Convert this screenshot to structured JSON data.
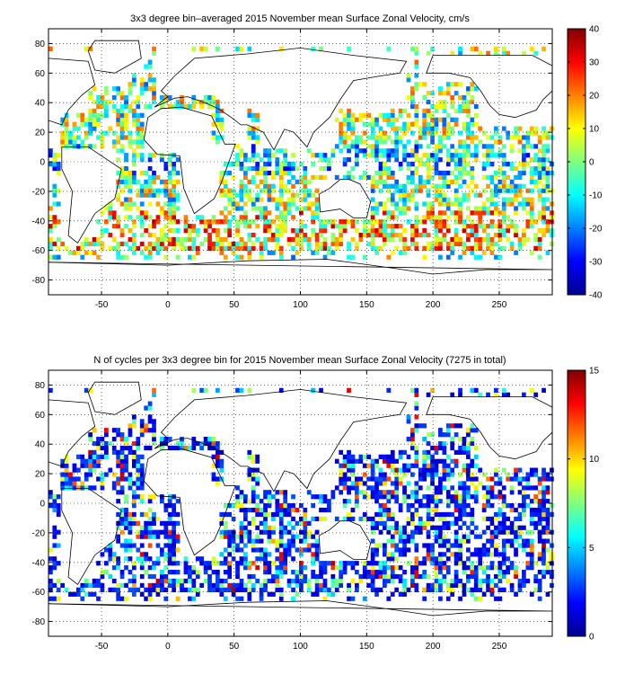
{
  "chart_data": [
    {
      "type": "heatmap",
      "title": "3x3 degree bin–averaged 2015 November mean Surface Zonal Velocity, cm/s",
      "xlabel": "",
      "ylabel": "",
      "xlim": [
        -90,
        290
      ],
      "ylim": [
        -90,
        90
      ],
      "x_ticks": [
        -50,
        0,
        50,
        100,
        150,
        200,
        250
      ],
      "y_ticks": [
        80,
        60,
        40,
        20,
        0,
        -20,
        -40,
        -60,
        -80
      ],
      "grid": true,
      "bin_size_deg": 3,
      "colorbar": {
        "range": [
          -40,
          40
        ],
        "ticks": [
          40,
          30,
          20,
          10,
          0,
          -10,
          -20,
          -30,
          -40
        ],
        "colormap": "jet",
        "placement": "right"
      }
    },
    {
      "type": "heatmap",
      "title": "N of cycles per 3x3 degree bin for 2015 November mean Surface Zonal Velocity (7275 in total)",
      "xlabel": "",
      "ylabel": "",
      "xlim": [
        -90,
        290
      ],
      "ylim": [
        -90,
        90
      ],
      "x_ticks": [
        -50,
        0,
        50,
        100,
        150,
        200,
        250
      ],
      "y_ticks": [
        80,
        60,
        40,
        20,
        0,
        -20,
        -40,
        -60,
        -80
      ],
      "grid": true,
      "bin_size_deg": 3,
      "colorbar": {
        "range": [
          0,
          15
        ],
        "ticks": [
          15,
          10,
          5,
          0
        ],
        "colormap": "jet",
        "placement": "right"
      }
    }
  ]
}
